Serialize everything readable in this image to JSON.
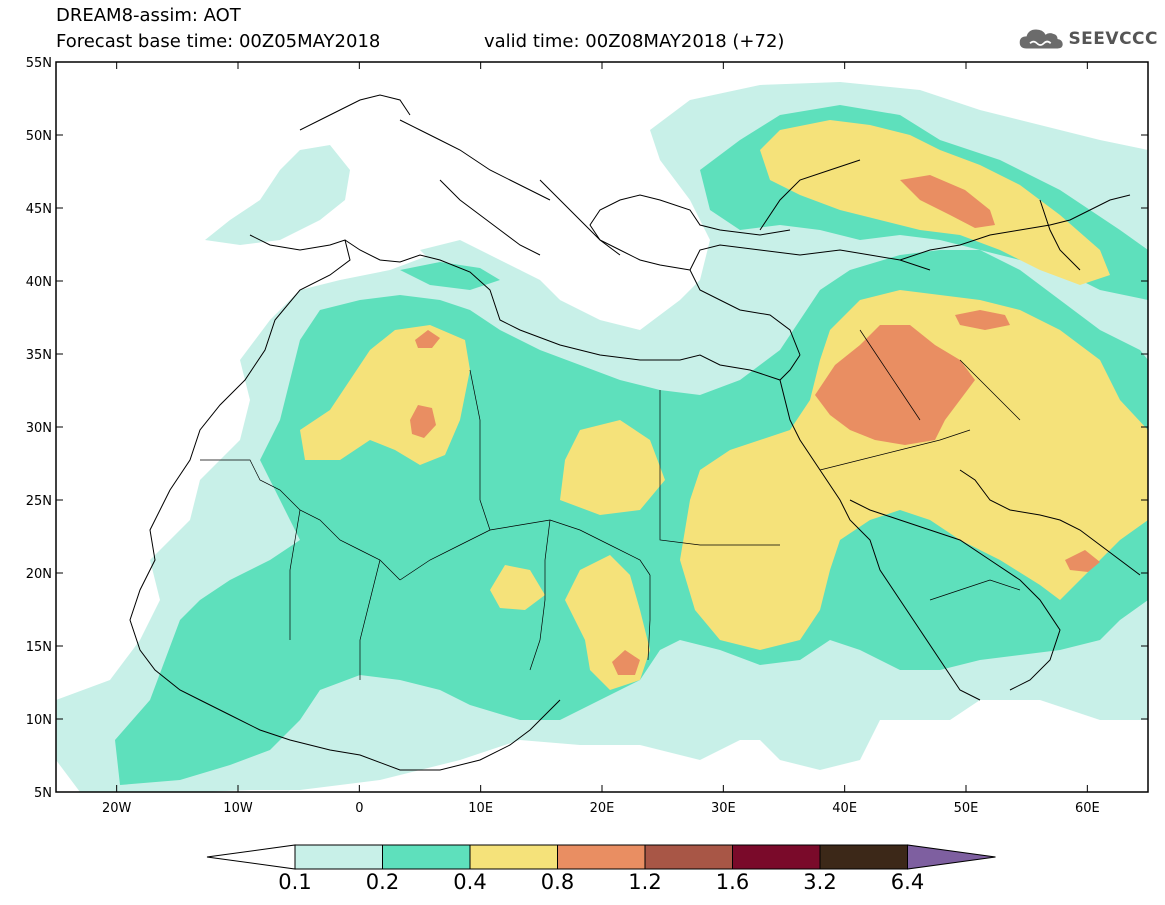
{
  "header": {
    "title": "DREAM8-assim: AOT",
    "base_time": "Forecast base time: 00Z05MAY2018",
    "valid_time": "valid time: 00Z08MAY2018 (+72)",
    "logo_text": "SEEVCCC",
    "logo_icon": "cloud-icon"
  },
  "map": {
    "projection": "lat-lon",
    "lon_range": [
      -25,
      65
    ],
    "lat_range": [
      5,
      55
    ],
    "lat_labels": [
      "55N",
      "50N",
      "45N",
      "40N",
      "35N",
      "30N",
      "25N",
      "20N",
      "15N",
      "10N",
      "5N"
    ],
    "lon_labels": [
      "20W",
      "10W",
      "0",
      "10E",
      "20E",
      "30E",
      "40E",
      "50E",
      "60E"
    ],
    "lat_values": [
      55,
      50,
      45,
      40,
      35,
      30,
      25,
      20,
      15,
      10,
      5
    ],
    "lon_values": [
      -20,
      -10,
      0,
      10,
      20,
      30,
      40,
      50,
      60
    ]
  },
  "colorbar": {
    "levels": [
      "0.1",
      "0.2",
      "0.4",
      "0.8",
      "1.2",
      "1.6",
      "3.2",
      "6.4"
    ],
    "colors": [
      "#c8f0e8",
      "#5ee0bc",
      "#f5e27a",
      "#e98e62",
      "#a85646",
      "#7a0a2a",
      "#3c2818",
      "#7e5fa0"
    ],
    "under_color": "#ffffff"
  }
}
